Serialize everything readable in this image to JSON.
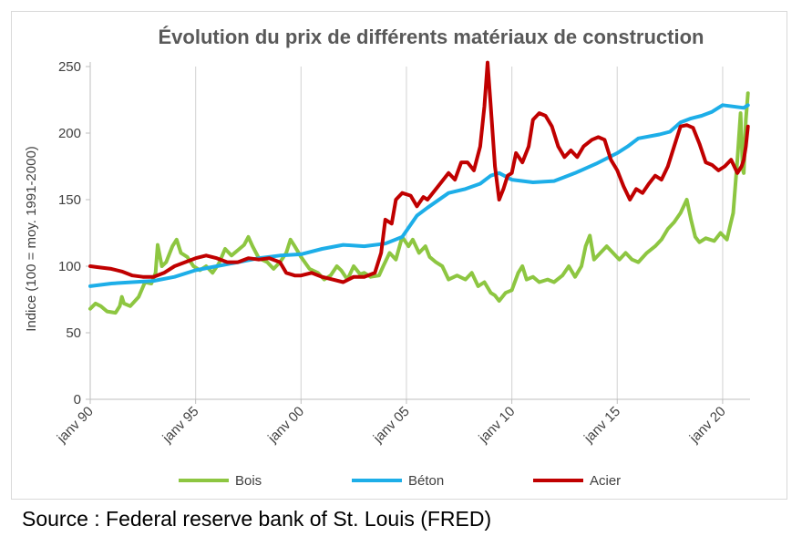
{
  "chart_data": {
    "type": "line",
    "title": "Évolution du prix de différents matériaux de construction",
    "ylabel": "Indice (100 = moy. 1991-2000)",
    "xlabel": "",
    "ylim": [
      0,
      250
    ],
    "yticks": [
      0,
      50,
      100,
      150,
      200,
      250
    ],
    "xlim": [
      1990,
      2021.3
    ],
    "xticks": [
      {
        "label": "janv 90",
        "x": 1990
      },
      {
        "label": "janv 95",
        "x": 1995
      },
      {
        "label": "janv 00",
        "x": 2000
      },
      {
        "label": "janv 05",
        "x": 2005
      },
      {
        "label": "janv 10",
        "x": 2010
      },
      {
        "label": "janv 15",
        "x": 2015
      },
      {
        "label": "janv 20",
        "x": 2020
      }
    ],
    "grid": "vertical",
    "legend_position": "bottom",
    "series": [
      {
        "name": "Bois",
        "color": "#8dc641",
        "points": [
          [
            1990.0,
            68
          ],
          [
            1990.25,
            72
          ],
          [
            1990.5,
            70
          ],
          [
            1990.8,
            66
          ],
          [
            1991.2,
            65
          ],
          [
            1991.4,
            70
          ],
          [
            1991.5,
            77
          ],
          [
            1991.6,
            72
          ],
          [
            1991.9,
            70
          ],
          [
            1992.3,
            77
          ],
          [
            1992.6,
            88
          ],
          [
            1992.9,
            87
          ],
          [
            1993.1,
            95
          ],
          [
            1993.2,
            116
          ],
          [
            1993.4,
            100
          ],
          [
            1993.6,
            103
          ],
          [
            1993.9,
            115
          ],
          [
            1994.1,
            120
          ],
          [
            1994.3,
            110
          ],
          [
            1994.6,
            107
          ],
          [
            1994.9,
            100
          ],
          [
            1995.2,
            97
          ],
          [
            1995.5,
            100
          ],
          [
            1995.8,
            95
          ],
          [
            1996.1,
            102
          ],
          [
            1996.4,
            113
          ],
          [
            1996.7,
            108
          ],
          [
            1997.0,
            112
          ],
          [
            1997.3,
            116
          ],
          [
            1997.5,
            122
          ],
          [
            1997.7,
            115
          ],
          [
            1998.0,
            106
          ],
          [
            1998.4,
            103
          ],
          [
            1998.7,
            98
          ],
          [
            1999.0,
            103
          ],
          [
            1999.3,
            110
          ],
          [
            1999.5,
            120
          ],
          [
            1999.7,
            115
          ],
          [
            2000.0,
            107
          ],
          [
            2000.4,
            98
          ],
          [
            2000.8,
            95
          ],
          [
            2001.1,
            90
          ],
          [
            2001.4,
            93
          ],
          [
            2001.7,
            100
          ],
          [
            2001.9,
            97
          ],
          [
            2002.2,
            90
          ],
          [
            2002.5,
            100
          ],
          [
            2002.8,
            94
          ],
          [
            2003.0,
            95
          ],
          [
            2003.3,
            92
          ],
          [
            2003.7,
            93
          ],
          [
            2003.9,
            100
          ],
          [
            2004.2,
            110
          ],
          [
            2004.5,
            105
          ],
          [
            2004.8,
            122
          ],
          [
            2005.1,
            115
          ],
          [
            2005.3,
            120
          ],
          [
            2005.6,
            110
          ],
          [
            2005.9,
            115
          ],
          [
            2006.1,
            107
          ],
          [
            2006.4,
            103
          ],
          [
            2006.7,
            100
          ],
          [
            2007.0,
            90
          ],
          [
            2007.4,
            93
          ],
          [
            2007.8,
            90
          ],
          [
            2008.1,
            95
          ],
          [
            2008.4,
            85
          ],
          [
            2008.7,
            88
          ],
          [
            2009.0,
            80
          ],
          [
            2009.2,
            78
          ],
          [
            2009.4,
            74
          ],
          [
            2009.7,
            80
          ],
          [
            2010.0,
            82
          ],
          [
            2010.3,
            95
          ],
          [
            2010.5,
            100
          ],
          [
            2010.7,
            90
          ],
          [
            2011.0,
            92
          ],
          [
            2011.3,
            88
          ],
          [
            2011.7,
            90
          ],
          [
            2012.0,
            88
          ],
          [
            2012.4,
            93
          ],
          [
            2012.7,
            100
          ],
          [
            2013.0,
            92
          ],
          [
            2013.3,
            100
          ],
          [
            2013.5,
            115
          ],
          [
            2013.7,
            123
          ],
          [
            2013.9,
            105
          ],
          [
            2014.2,
            110
          ],
          [
            2014.5,
            115
          ],
          [
            2014.8,
            110
          ],
          [
            2015.1,
            105
          ],
          [
            2015.4,
            110
          ],
          [
            2015.7,
            105
          ],
          [
            2016.0,
            103
          ],
          [
            2016.4,
            110
          ],
          [
            2016.8,
            115
          ],
          [
            2017.1,
            120
          ],
          [
            2017.4,
            128
          ],
          [
            2017.7,
            133
          ],
          [
            2018.0,
            140
          ],
          [
            2018.3,
            150
          ],
          [
            2018.5,
            135
          ],
          [
            2018.7,
            122
          ],
          [
            2018.9,
            118
          ],
          [
            2019.2,
            121
          ],
          [
            2019.6,
            119
          ],
          [
            2019.9,
            125
          ],
          [
            2020.2,
            120
          ],
          [
            2020.35,
            130
          ],
          [
            2020.5,
            140
          ],
          [
            2020.7,
            180
          ],
          [
            2020.85,
            215
          ],
          [
            2020.95,
            173
          ],
          [
            2021.0,
            170
          ],
          [
            2021.1,
            210
          ],
          [
            2021.2,
            230
          ]
        ]
      },
      {
        "name": "Béton",
        "color": "#1daee8",
        "points": [
          [
            1990.0,
            85
          ],
          [
            1991.0,
            87
          ],
          [
            1992.0,
            88
          ],
          [
            1993.0,
            89
          ],
          [
            1994.0,
            92
          ],
          [
            1995.0,
            97
          ],
          [
            1996.0,
            100
          ],
          [
            1997.0,
            103
          ],
          [
            1998.0,
            106
          ],
          [
            1999.0,
            108
          ],
          [
            2000.0,
            109
          ],
          [
            2001.0,
            113
          ],
          [
            2002.0,
            116
          ],
          [
            2003.0,
            115
          ],
          [
            2004.0,
            117
          ],
          [
            2004.8,
            122
          ],
          [
            2005.5,
            138
          ],
          [
            2006.0,
            144
          ],
          [
            2007.0,
            155
          ],
          [
            2007.8,
            158
          ],
          [
            2008.5,
            162
          ],
          [
            2009.0,
            168
          ],
          [
            2009.4,
            170
          ],
          [
            2010.0,
            165
          ],
          [
            2011.0,
            163
          ],
          [
            2012.0,
            164
          ],
          [
            2012.5,
            167
          ],
          [
            2013.0,
            170
          ],
          [
            2014.0,
            177
          ],
          [
            2015.0,
            185
          ],
          [
            2015.5,
            190
          ],
          [
            2016.0,
            196
          ],
          [
            2017.0,
            199
          ],
          [
            2017.5,
            201
          ],
          [
            2018.0,
            208
          ],
          [
            2018.5,
            211
          ],
          [
            2019.0,
            213
          ],
          [
            2019.5,
            216
          ],
          [
            2020.0,
            221
          ],
          [
            2020.5,
            220
          ],
          [
            2021.0,
            219
          ],
          [
            2021.2,
            221
          ]
        ]
      },
      {
        "name": "Acier",
        "color": "#c00000",
        "points": [
          [
            1990.0,
            100
          ],
          [
            1990.5,
            99
          ],
          [
            1991.0,
            98
          ],
          [
            1991.5,
            96
          ],
          [
            1992.0,
            93
          ],
          [
            1992.5,
            92
          ],
          [
            1993.0,
            92
          ],
          [
            1993.5,
            95
          ],
          [
            1994.0,
            100
          ],
          [
            1994.5,
            103
          ],
          [
            1995.0,
            106
          ],
          [
            1995.5,
            108
          ],
          [
            1996.0,
            106
          ],
          [
            1996.5,
            103
          ],
          [
            1997.0,
            103
          ],
          [
            1997.5,
            106
          ],
          [
            1998.0,
            105
          ],
          [
            1998.5,
            106
          ],
          [
            1999.0,
            103
          ],
          [
            1999.3,
            95
          ],
          [
            1999.7,
            93
          ],
          [
            2000.0,
            93
          ],
          [
            2000.5,
            95
          ],
          [
            2001.0,
            92
          ],
          [
            2001.5,
            90
          ],
          [
            2002.0,
            88
          ],
          [
            2002.5,
            92
          ],
          [
            2003.0,
            92
          ],
          [
            2003.5,
            95
          ],
          [
            2003.8,
            110
          ],
          [
            2004.0,
            135
          ],
          [
            2004.3,
            132
          ],
          [
            2004.5,
            150
          ],
          [
            2004.8,
            155
          ],
          [
            2005.2,
            153
          ],
          [
            2005.5,
            145
          ],
          [
            2005.8,
            152
          ],
          [
            2006.0,
            150
          ],
          [
            2006.5,
            160
          ],
          [
            2007.0,
            170
          ],
          [
            2007.3,
            165
          ],
          [
            2007.6,
            178
          ],
          [
            2007.9,
            178
          ],
          [
            2008.2,
            172
          ],
          [
            2008.5,
            190
          ],
          [
            2008.7,
            220
          ],
          [
            2008.85,
            253
          ],
          [
            2009.0,
            220
          ],
          [
            2009.2,
            175
          ],
          [
            2009.4,
            150
          ],
          [
            2009.6,
            158
          ],
          [
            2009.8,
            168
          ],
          [
            2010.0,
            170
          ],
          [
            2010.2,
            185
          ],
          [
            2010.5,
            178
          ],
          [
            2010.8,
            190
          ],
          [
            2011.0,
            210
          ],
          [
            2011.3,
            215
          ],
          [
            2011.6,
            213
          ],
          [
            2011.9,
            205
          ],
          [
            2012.2,
            190
          ],
          [
            2012.5,
            182
          ],
          [
            2012.8,
            187
          ],
          [
            2013.1,
            182
          ],
          [
            2013.4,
            190
          ],
          [
            2013.8,
            195
          ],
          [
            2014.1,
            197
          ],
          [
            2014.4,
            195
          ],
          [
            2014.7,
            180
          ],
          [
            2015.0,
            172
          ],
          [
            2015.3,
            160
          ],
          [
            2015.6,
            150
          ],
          [
            2015.9,
            158
          ],
          [
            2016.2,
            155
          ],
          [
            2016.5,
            162
          ],
          [
            2016.8,
            168
          ],
          [
            2017.1,
            165
          ],
          [
            2017.4,
            175
          ],
          [
            2017.7,
            190
          ],
          [
            2018.0,
            205
          ],
          [
            2018.3,
            206
          ],
          [
            2018.6,
            204
          ],
          [
            2018.9,
            192
          ],
          [
            2019.2,
            178
          ],
          [
            2019.5,
            176
          ],
          [
            2019.8,
            172
          ],
          [
            2020.1,
            175
          ],
          [
            2020.4,
            180
          ],
          [
            2020.7,
            170
          ],
          [
            2020.9,
            175
          ],
          [
            2021.0,
            180
          ],
          [
            2021.1,
            190
          ],
          [
            2021.2,
            205
          ]
        ]
      }
    ]
  },
  "source": "Source : Federal reserve bank of St. Louis (FRED)"
}
